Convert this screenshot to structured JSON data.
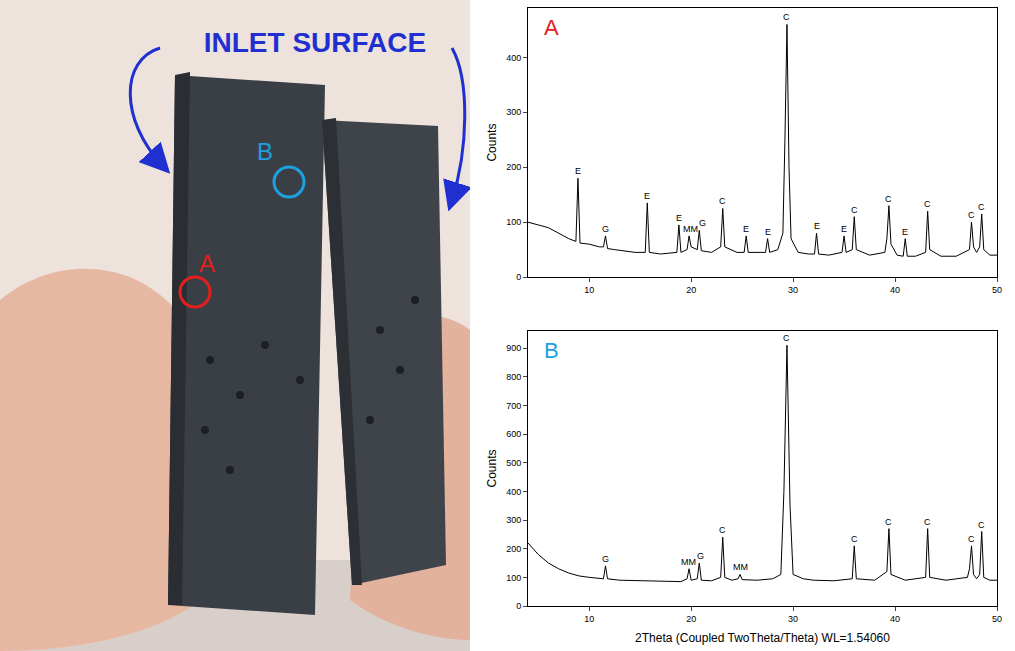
{
  "photo": {
    "title": "INLET SURFACE",
    "markers": [
      {
        "text": "A",
        "color": "#e0201c"
      },
      {
        "text": "B",
        "color": "#1ea0e0"
      }
    ]
  },
  "chart_data": [
    {
      "type": "line",
      "panel": {
        "text": "A",
        "color": "#e0201c"
      },
      "color": "#000000",
      "grid": false,
      "ylabel": "Counts",
      "x": [
        4,
        5,
        6,
        7,
        8,
        8.7,
        8.9,
        9.1,
        10,
        11,
        11.4,
        11.6,
        11.8,
        12.5,
        13.5,
        14.5,
        15.5,
        15.7,
        15.9,
        17,
        18.6,
        18.8,
        19,
        19.6,
        19.8,
        20,
        20.6,
        20.8,
        21,
        22,
        22.9,
        23.1,
        23.3,
        24.5,
        25.2,
        25.4,
        25.6,
        26.5,
        27.3,
        27.5,
        27.7,
        28.5,
        29,
        29.2,
        29.4,
        29.6,
        29.8,
        30.5,
        31.5,
        32.1,
        32.3,
        32.5,
        33.5,
        34.8,
        35,
        35.2,
        35.8,
        36,
        36.2,
        37.5,
        39,
        39.2,
        39.4,
        39.6,
        40.2,
        40.8,
        41,
        41.2,
        42,
        43,
        43.2,
        43.4,
        44.5,
        46,
        47.3,
        47.5,
        47.7,
        48,
        48.3,
        48.5,
        48.7,
        49.3,
        50
      ],
      "values": [
        100,
        95,
        90,
        80,
        70,
        65,
        180,
        62,
        60,
        55,
        55,
        75,
        52,
        50,
        48,
        45,
        45,
        135,
        45,
        42,
        45,
        95,
        45,
        50,
        75,
        55,
        50,
        85,
        48,
        45,
        55,
        125,
        55,
        45,
        45,
        75,
        45,
        45,
        45,
        70,
        45,
        50,
        80,
        250,
        460,
        200,
        70,
        45,
        42,
        42,
        80,
        42,
        40,
        45,
        75,
        45,
        50,
        110,
        50,
        40,
        45,
        70,
        130,
        60,
        40,
        38,
        70,
        38,
        38,
        45,
        120,
        50,
        38,
        38,
        50,
        100,
        55,
        45,
        55,
        115,
        50,
        40,
        40
      ],
      "xlim": [
        4,
        50
      ],
      "xticks": [
        10,
        20,
        30,
        40,
        50
      ],
      "ylim": [
        0,
        490
      ],
      "yticks": [
        0,
        100,
        200,
        300,
        400
      ],
      "peaks": [
        {
          "x": 8.9,
          "y": 180,
          "text": "E"
        },
        {
          "x": 11.6,
          "y": 75,
          "text": "G"
        },
        {
          "x": 15.7,
          "y": 135,
          "text": "E"
        },
        {
          "x": 18.8,
          "y": 95,
          "text": "E"
        },
        {
          "x": 19.9,
          "y": 75,
          "text": "MM"
        },
        {
          "x": 21.1,
          "y": 85,
          "text": "G"
        },
        {
          "x": 23.1,
          "y": 125,
          "text": "C"
        },
        {
          "x": 25.4,
          "y": 75,
          "text": "E"
        },
        {
          "x": 27.5,
          "y": 70,
          "text": "E"
        },
        {
          "x": 29.4,
          "y": 460,
          "text": "C"
        },
        {
          "x": 32.3,
          "y": 80,
          "text": "E"
        },
        {
          "x": 35.0,
          "y": 75,
          "text": "E"
        },
        {
          "x": 36.0,
          "y": 110,
          "text": "C"
        },
        {
          "x": 39.4,
          "y": 130,
          "text": "C"
        },
        {
          "x": 41.0,
          "y": 70,
          "text": "E"
        },
        {
          "x": 43.2,
          "y": 120,
          "text": "C"
        },
        {
          "x": 47.5,
          "y": 100,
          "text": "C"
        },
        {
          "x": 48.5,
          "y": 115,
          "text": "C"
        }
      ]
    },
    {
      "type": "line",
      "panel": {
        "text": "B",
        "color": "#1ea0e0"
      },
      "color": "#000000",
      "grid": false,
      "ylabel": "Counts",
      "xlabel": "2Theta (Coupled TwoTheta/Theta) WL=1.54060",
      "x": [
        4,
        4.5,
        5,
        6,
        7,
        8,
        9,
        10,
        11,
        11.4,
        11.6,
        11.8,
        13,
        15,
        17,
        19,
        19.6,
        19.8,
        20,
        20.6,
        20.8,
        21,
        22,
        22.9,
        23.1,
        23.3,
        24,
        24.6,
        24.8,
        25,
        26.5,
        28,
        28.8,
        29.1,
        29.4,
        29.7,
        30,
        31,
        32,
        34,
        35.8,
        36,
        36.2,
        38,
        39.2,
        39.4,
        39.6,
        41,
        43,
        43.2,
        43.4,
        45,
        47.1,
        47.3,
        47.5,
        47.7,
        48,
        48.3,
        48.5,
        48.7,
        49.3,
        50
      ],
      "values": [
        220,
        200,
        180,
        150,
        130,
        115,
        105,
        100,
        95,
        95,
        140,
        95,
        90,
        88,
        85,
        85,
        95,
        130,
        90,
        95,
        150,
        90,
        88,
        100,
        240,
        100,
        90,
        95,
        110,
        92,
        90,
        95,
        110,
        400,
        910,
        350,
        110,
        95,
        90,
        88,
        95,
        210,
        95,
        90,
        120,
        270,
        110,
        90,
        100,
        270,
        100,
        90,
        100,
        130,
        210,
        110,
        95,
        110,
        260,
        100,
        90,
        90
      ],
      "xlim": [
        4,
        50
      ],
      "xticks": [
        10,
        20,
        30,
        40,
        50
      ],
      "ylim": [
        0,
        960
      ],
      "yticks": [
        0,
        100,
        200,
        300,
        400,
        500,
        600,
        700,
        800,
        900
      ],
      "peaks": [
        {
          "x": 11.6,
          "y": 140,
          "text": "G"
        },
        {
          "x": 19.7,
          "y": 130,
          "text": "MM"
        },
        {
          "x": 20.9,
          "y": 150,
          "text": "G"
        },
        {
          "x": 23.1,
          "y": 240,
          "text": "C"
        },
        {
          "x": 24.8,
          "y": 110,
          "text": "MM"
        },
        {
          "x": 29.4,
          "y": 910,
          "text": "C"
        },
        {
          "x": 36.0,
          "y": 210,
          "text": "C"
        },
        {
          "x": 39.4,
          "y": 270,
          "text": "C"
        },
        {
          "x": 43.2,
          "y": 270,
          "text": "C"
        },
        {
          "x": 47.5,
          "y": 210,
          "text": "C"
        },
        {
          "x": 48.5,
          "y": 260,
          "text": "C"
        }
      ]
    }
  ]
}
